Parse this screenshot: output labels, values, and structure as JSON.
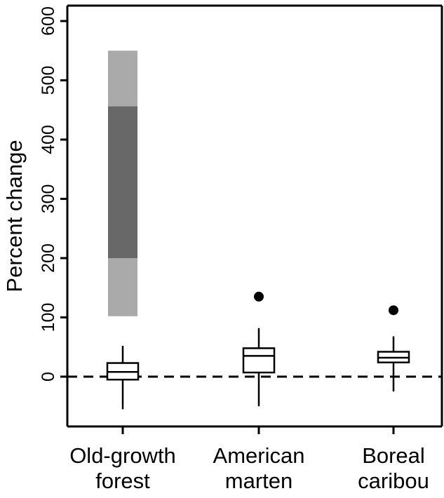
{
  "chart_data": {
    "type": "boxplot",
    "ylabel": "Percent change",
    "xlabel": "",
    "ylim": [
      -85,
      610
    ],
    "yticks": [
      "0",
      "100",
      "200",
      "300",
      "400",
      "500",
      "600"
    ],
    "ytick_values": [
      0,
      100,
      200,
      300,
      400,
      500,
      600
    ],
    "reference_line": {
      "y": 0,
      "style": "dashed"
    },
    "grid": false,
    "categories": [
      {
        "label_lines": [
          "Old-growth",
          "forest"
        ]
      },
      {
        "label_lines": [
          "American",
          "marten"
        ]
      },
      {
        "label_lines": [
          "Boreal",
          "caribou"
        ]
      }
    ],
    "boxes": [
      {
        "whisker_low": -55,
        "q1": -5,
        "median": 8,
        "q3": 23,
        "whisker_high": 52,
        "outliers": []
      },
      {
        "whisker_low": -50,
        "q1": 7,
        "median": 35,
        "q3": 48,
        "whisker_high": 82,
        "outliers": [
          135
        ]
      },
      {
        "whisker_low": -25,
        "q1": 24,
        "median": 32,
        "q3": 42,
        "whisker_high": 68,
        "outliers": [
          112
        ]
      }
    ],
    "ranges": [
      {
        "category_index": 0,
        "low": 102,
        "high": 550,
        "color": "#aaaaaa"
      },
      {
        "category_index": 0,
        "low": 200,
        "high": 456,
        "color": "#686868"
      }
    ]
  }
}
